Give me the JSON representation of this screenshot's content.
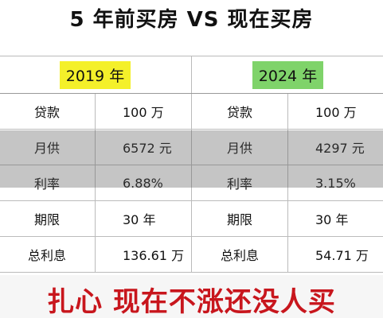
{
  "title": "5 年前买房 VS 现在买房",
  "table": {
    "headers": [
      "2019 年",
      "2024 年"
    ],
    "rows": [
      [
        "贷款",
        "100 万",
        "贷款",
        "100 万"
      ],
      [
        "月供",
        "6572 元",
        "月供",
        "4297 元"
      ],
      [
        "利率",
        "6.88%",
        "利率",
        "3.15%"
      ],
      [
        "期限",
        "30 年",
        "期限",
        "30 年"
      ],
      [
        "总利息",
        "136.61 万",
        "总利息",
        "54.71 万"
      ]
    ]
  },
  "banner": "扎心 现在不涨还没人买"
}
